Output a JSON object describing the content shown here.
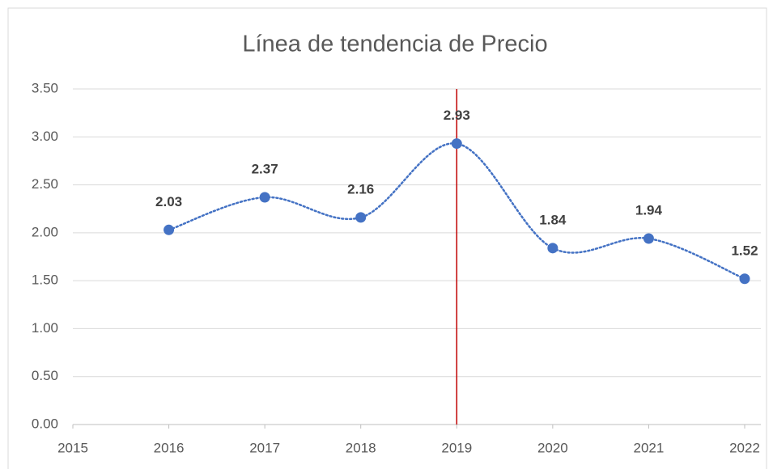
{
  "chart_data": {
    "type": "line",
    "title": "Línea de tendencia de Precio",
    "x": [
      2016,
      2017,
      2018,
      2019,
      2020,
      2021,
      2022
    ],
    "values": [
      2.03,
      2.37,
      2.16,
      2.93,
      1.84,
      1.94,
      1.52
    ],
    "color": "#4472c4",
    "xlim": [
      2015,
      2022
    ],
    "xticks": [
      2015,
      2016,
      2017,
      2018,
      2019,
      2020,
      2021,
      2022
    ],
    "ylim": [
      0,
      3.5
    ],
    "yticks": [
      {
        "value": 0,
        "label": "0.00"
      },
      {
        "value": 0.5,
        "label": "0.50"
      },
      {
        "value": 1,
        "label": "1.00"
      },
      {
        "value": 1.5,
        "label": "1.50"
      },
      {
        "value": 2,
        "label": "2.00"
      },
      {
        "value": 2.5,
        "label": "2.50"
      },
      {
        "value": 3,
        "label": "3.00"
      },
      {
        "value": 3.5,
        "label": "3.50"
      }
    ],
    "grid": true,
    "smooth": true,
    "line_style": "dotted",
    "vline": {
      "x": 2019,
      "color": "#c00000"
    }
  }
}
